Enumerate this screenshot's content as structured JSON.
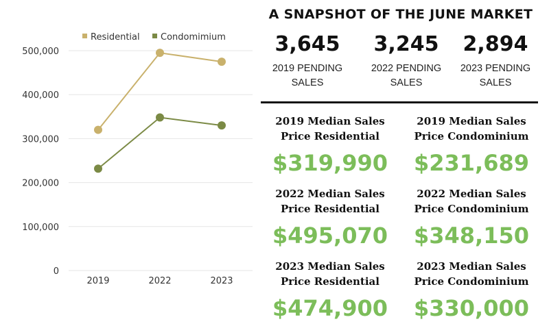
{
  "headline": "A SNAPSHOT OF THE JUNE MARKET",
  "pending": [
    {
      "count": "3,645",
      "label": "2019 PENDING SALES"
    },
    {
      "count": "3,245",
      "label": "2022 PENDING SALES"
    },
    {
      "count": "2,894",
      "label": "2023 PENDING SALES"
    }
  ],
  "medians": [
    {
      "title": "2019 Median Sales Price Residential",
      "amount": "$319,990"
    },
    {
      "title": "2019 Median Sales Price Condominium",
      "amount": "$231,689"
    },
    {
      "title": "2022 Median Sales Price Residential",
      "amount": "$495,070"
    },
    {
      "title": "2022 Median Sales Price Condominium",
      "amount": "$348,150"
    },
    {
      "title": "2023 Median Sales Price Residential",
      "amount": "$474,900"
    },
    {
      "title": "2023 Median Sales Price Condominium",
      "amount": "$330,000"
    }
  ],
  "colors": {
    "residential": "#c9b16c",
    "condominium": "#7b8a45",
    "price": "#7cbd5a",
    "grid": "#e6e6e6"
  },
  "chart_data": {
    "type": "line",
    "x": [
      "2019",
      "2022",
      "2023"
    ],
    "series": [
      {
        "name": "Residential",
        "values": [
          319990,
          495070,
          474900
        ]
      },
      {
        "name": "Condomimium",
        "values": [
          231689,
          348150,
          330000
        ]
      }
    ],
    "ylim": [
      0,
      500000
    ],
    "yticks": [
      "0",
      "100,000",
      "200,000",
      "300,000",
      "400,000",
      "500,000"
    ],
    "grid": true,
    "legend": "top"
  }
}
